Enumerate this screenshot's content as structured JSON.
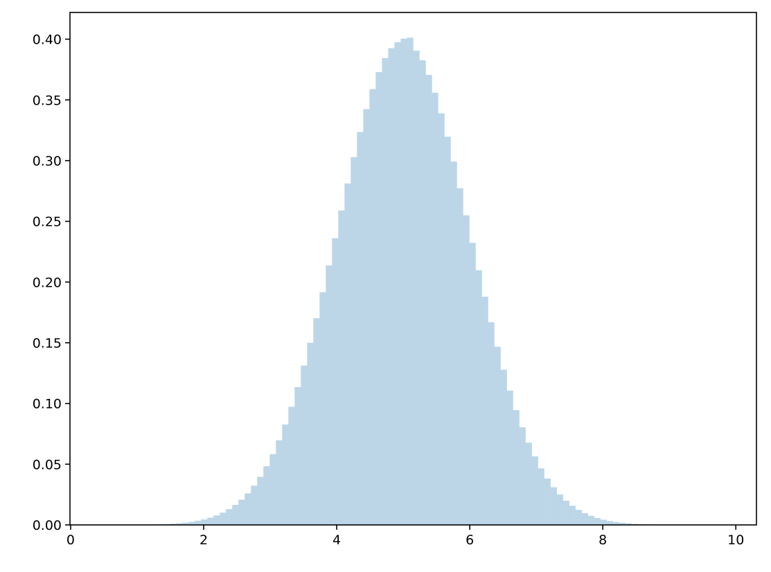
{
  "chart_data": {
    "type": "bar",
    "subtype": "histogram",
    "title": "",
    "xlabel": "",
    "ylabel": "",
    "xlim": [
      -0.01,
      10.31
    ],
    "ylim": [
      0,
      0.422
    ],
    "grid": false,
    "bar_color": "#bcd6e8",
    "bin_start": 0.459,
    "bin_width": 0.0938,
    "xticks": [
      0,
      2,
      4,
      6,
      8,
      10
    ],
    "xtick_labels": [
      "0",
      "2",
      "4",
      "6",
      "8",
      "10"
    ],
    "yticks": [
      0,
      0.05,
      0.1,
      0.15,
      0.2,
      0.25,
      0.3,
      0.35,
      0.4
    ],
    "ytick_labels": [
      "0.00",
      "0.05",
      "0.10",
      "0.15",
      "0.20",
      "0.25",
      "0.30",
      "0.35",
      "0.40"
    ],
    "values": [
      2e-05,
      2e-05,
      4e-05,
      6e-05,
      8e-05,
      0.00012,
      0.00018,
      0.00025,
      0.00036,
      0.00051,
      0.0007,
      0.001,
      0.0014,
      0.0019,
      0.0025,
      0.0034,
      0.0045,
      0.006,
      0.0078,
      0.0101,
      0.013,
      0.0165,
      0.0208,
      0.026,
      0.0323,
      0.0396,
      0.0483,
      0.0583,
      0.0697,
      0.0827,
      0.0973,
      0.1135,
      0.1312,
      0.15,
      0.1702,
      0.1916,
      0.2137,
      0.2361,
      0.2589,
      0.2812,
      0.3029,
      0.3236,
      0.3424,
      0.3589,
      0.3729,
      0.3844,
      0.3926,
      0.3974,
      0.4005,
      0.4012,
      0.3905,
      0.3826,
      0.3706,
      0.3559,
      0.3389,
      0.3197,
      0.2992,
      0.2773,
      0.2549,
      0.2323,
      0.2097,
      0.1879,
      0.1669,
      0.1467,
      0.1278,
      0.1106,
      0.0945,
      0.0804,
      0.0677,
      0.0564,
      0.0466,
      0.0382,
      0.031,
      0.025,
      0.0199,
      0.0158,
      0.0124,
      0.0097,
      0.0075,
      0.0057,
      0.0043,
      0.0032,
      0.0024,
      0.0018,
      0.0013,
      0.0009,
      0.0007,
      0.0005,
      0.0003,
      0.0002,
      0.0002,
      0.0001,
      0.0001,
      0.0001,
      0,
      0,
      0,
      0,
      0,
      0
    ]
  }
}
